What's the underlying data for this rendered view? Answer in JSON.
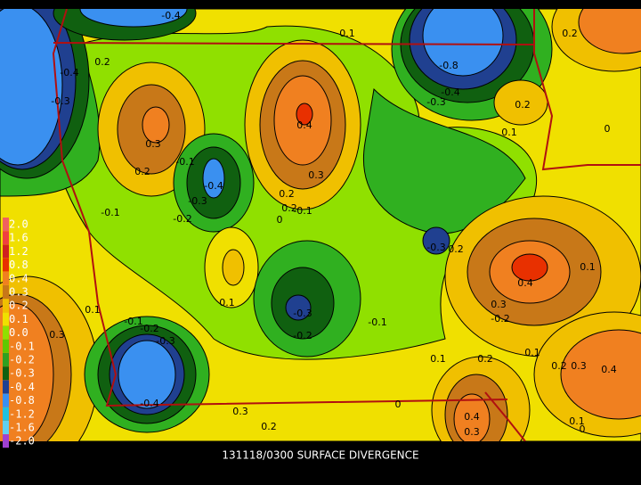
{
  "footer": {
    "title": "131118/0300 SURFACE DIVERGENCE"
  },
  "legend": {
    "labels": [
      "2.0",
      "1.6",
      "1.2",
      "0.8",
      "0.4",
      "0.3",
      "0.2",
      "0.1",
      "0.0",
      "-0.1",
      "-0.2",
      "-0.3",
      "-0.4",
      "-0.8",
      "-1.2",
      "-1.6",
      "-2.0"
    ]
  },
  "contour_labels": [
    "-0.4",
    "0.1",
    "0.2",
    "-0.4",
    "-0.3",
    "0.3",
    "0.4",
    "0.2",
    "-0.1",
    "-0.4",
    "-0.3",
    "-0.2",
    "0.2",
    "0.3",
    "0.2",
    "-0.1",
    "-0.1",
    "0",
    "-0.8",
    "-0.4",
    "-0.3",
    "0.2",
    "0.1",
    "0",
    "0.2",
    "-0.3",
    "0.2",
    "0.1",
    "0.1",
    "-0.3",
    "-0.2",
    "-0.1",
    "-0.1",
    "0.4",
    "0.3",
    "-0.2",
    "0.1",
    "-0.2",
    "-0.3",
    "0.3",
    "-0.4",
    "0.1",
    "0.2",
    "0.1",
    "0.2",
    "0.3",
    "0.4",
    "0",
    "0.4",
    "0.3",
    "0.3",
    "0.2",
    "0.1",
    "0"
  ]
}
